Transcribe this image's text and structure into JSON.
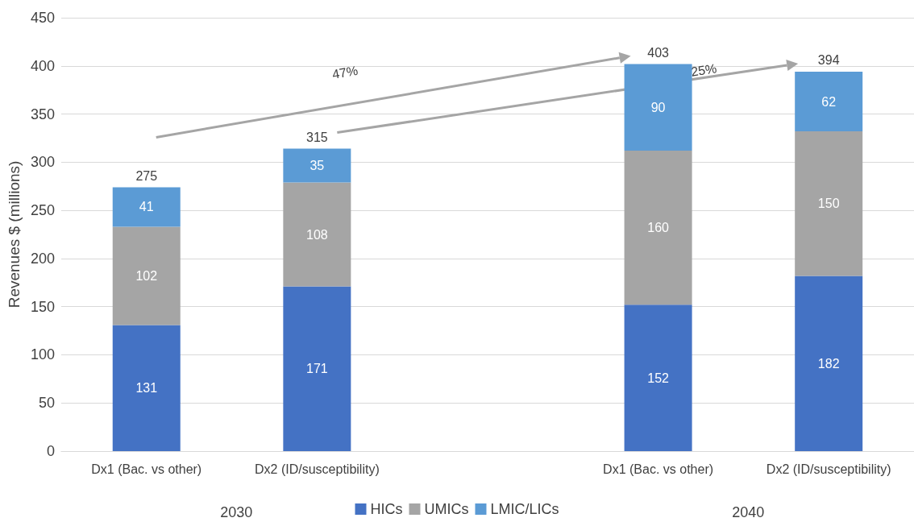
{
  "chart_data": {
    "type": "bar",
    "stacked": true,
    "categories": [
      "Dx1 (Bac. vs other)",
      "Dx2 (ID/susceptibility)",
      null,
      "Dx1 (Bac. vs other)",
      "Dx2 (ID/susceptibility)"
    ],
    "series": [
      {
        "name": "HICs",
        "color": "#4472c4",
        "values": [
          131,
          171,
          null,
          152,
          182
        ]
      },
      {
        "name": "UMICs",
        "color": "#a5a5a5",
        "values": [
          102,
          108,
          null,
          160,
          150
        ]
      },
      {
        "name": "LMIC/LICs",
        "color": "#5b9bd5",
        "values": [
          41,
          35,
          null,
          90,
          62
        ]
      }
    ],
    "totals": [
      "275",
      "315",
      null,
      "403",
      "394"
    ],
    "ylabel": "Revenues $ (millions)",
    "ylim": [
      0,
      450
    ],
    "yticks": [
      0,
      50,
      100,
      150,
      200,
      250,
      300,
      350,
      400,
      450
    ],
    "annotations": [
      "47%",
      "25%",
      "2030",
      "2040"
    ],
    "data_labels": true,
    "grid": "y",
    "legend": "bottom"
  }
}
